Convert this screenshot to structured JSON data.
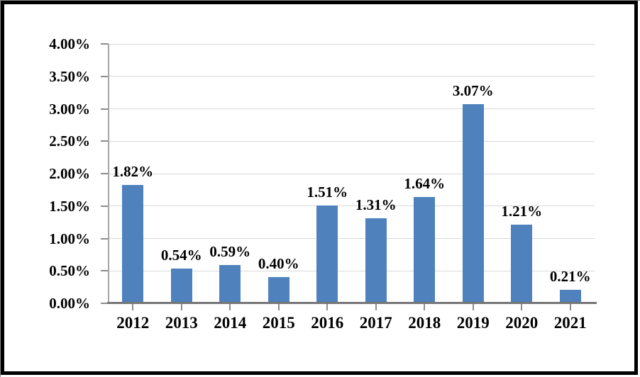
{
  "frame": {
    "border_color": "#000000",
    "background_color": "#ffffff"
  },
  "chart_data": {
    "type": "bar",
    "title": "",
    "xlabel": "",
    "ylabel": "",
    "categories": [
      "2012",
      "2013",
      "2014",
      "2015",
      "2016",
      "2017",
      "2018",
      "2019",
      "2020",
      "2021"
    ],
    "values": [
      1.82,
      0.54,
      0.59,
      0.4,
      1.51,
      1.31,
      1.64,
      3.07,
      1.21,
      0.21
    ],
    "data_labels": [
      "1.82%",
      "0.54%",
      "0.59%",
      "0.40%",
      "1.51%",
      "1.31%",
      "1.64%",
      "3.07%",
      "1.21%",
      "0.21%"
    ],
    "y_tick_labels": [
      "0.00%",
      "0.50%",
      "1.00%",
      "1.50%",
      "2.00%",
      "2.50%",
      "3.00%",
      "3.50%",
      "4.00%"
    ],
    "ylim": [
      0,
      4.0
    ],
    "y_tick_step": 0.5,
    "grid": "horizontal-only",
    "legend": "none",
    "colors": {
      "bar": "#4F81BD",
      "gridline": "#D9D9D9",
      "x_axis_line": "#767676",
      "y_axis_line": "#A6A6A6",
      "tick": "#8C8C8C",
      "text": "#000000"
    }
  }
}
